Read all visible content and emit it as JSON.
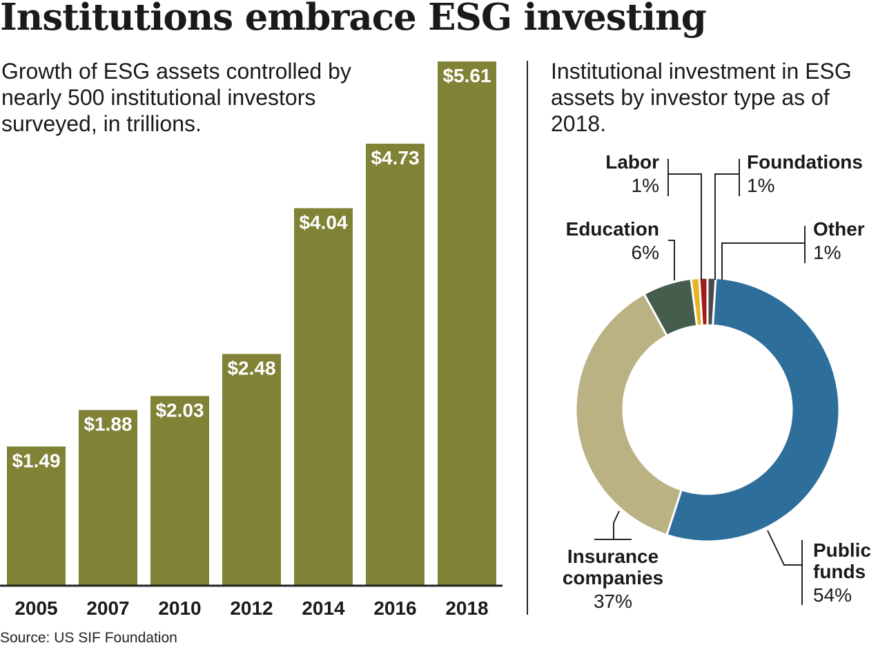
{
  "title": "Institutions embrace ESG investing",
  "source": "Source: US SIF Foundation",
  "chart_data": [
    {
      "type": "bar",
      "title": "Growth of ESG assets controlled by nearly 500 institutional investors surveyed, in trillions.",
      "categories": [
        "2005",
        "2007",
        "2010",
        "2012",
        "2014",
        "2016",
        "2018"
      ],
      "values": [
        1.49,
        1.88,
        2.03,
        2.48,
        4.04,
        4.73,
        5.61
      ],
      "labels": [
        "$1.49",
        "$1.88",
        "$2.03",
        "$2.48",
        "$4.04",
        "$4.73",
        "$5.61"
      ],
      "xlabel": "",
      "ylabel": "",
      "ylim": [
        0,
        5.61
      ],
      "grid": false,
      "color": "#808236"
    },
    {
      "type": "pie",
      "style": "donut",
      "title": "Institutional investment in ESG assets by investor type as of 2018.",
      "slices": [
        {
          "name": "Public funds",
          "lines": [
            "Public",
            "funds"
          ],
          "value": 54,
          "label": "54%",
          "color": "#2e6e9b"
        },
        {
          "name": "Insurance companies",
          "lines": [
            "Insurance",
            "companies"
          ],
          "value": 37,
          "label": "37%",
          "color": "#bbb283"
        },
        {
          "name": "Education",
          "lines": [
            "Education"
          ],
          "value": 6,
          "label": "6%",
          "color": "#465c4c"
        },
        {
          "name": "Labor",
          "lines": [
            "Labor"
          ],
          "value": 1,
          "label": "1%",
          "color": "#e7b424"
        },
        {
          "name": "Foundations",
          "lines": [
            "Foundations"
          ],
          "value": 1,
          "label": "1%",
          "color": "#a31b1b"
        },
        {
          "name": "Other",
          "lines": [
            "Other"
          ],
          "value": 1,
          "label": "1%",
          "color": "#4b4b4b"
        }
      ]
    }
  ]
}
